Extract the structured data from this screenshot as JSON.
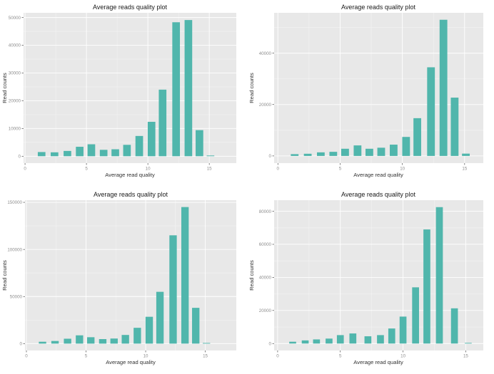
{
  "styles": {
    "bar_color": "#50b6ac",
    "panel_bg": "#e8e8e8",
    "grid_major": "#ffffff",
    "grid_minor": "#f3f3f3",
    "tick_mark_color": "#333333",
    "tick_text_color": "#8e8e8e"
  },
  "chart_data": [
    {
      "type": "bar",
      "title": "Average reads quality plot",
      "xlabel": "Average read quality",
      "ylabel": "Read counts",
      "x": [
        1.35,
        2.4,
        3.45,
        4.45,
        5.4,
        6.4,
        7.35,
        8.3,
        9.3,
        10.3,
        11.2,
        12.3,
        13.3,
        14.2,
        15.1
      ],
      "values": [
        1500,
        1400,
        1900,
        3400,
        4300,
        2300,
        2500,
        4100,
        7300,
        12400,
        24000,
        48300,
        49100,
        9400,
        250
      ],
      "bar_width": 0.62,
      "xlim": [
        -0.12,
        17.2
      ],
      "ylim": [
        -2500,
        51700
      ],
      "x_ticks": [
        0,
        5,
        10,
        15
      ],
      "x_tick_labels": [
        "0",
        "5",
        "10",
        "15"
      ],
      "x_minor": [
        2.5,
        7.5,
        12.5
      ],
      "y_ticks": [
        0,
        10000,
        20000,
        30000,
        40000,
        50000
      ],
      "y_tick_labels": [
        "0",
        "10000",
        "20000",
        "30000",
        "40000",
        "50000"
      ],
      "y_minor": [
        5000,
        15000,
        25000,
        35000,
        45000
      ],
      "grid": true,
      "legend": "none"
    },
    {
      "type": "bar",
      "title": "Average reads quality plot",
      "xlabel": "Average read quality",
      "ylabel": "Read counts",
      "x": [
        1.35,
        2.4,
        3.45,
        4.45,
        5.4,
        6.4,
        7.35,
        8.3,
        9.3,
        10.3,
        11.2,
        12.3,
        13.3,
        14.2,
        15.1
      ],
      "values": [
        700,
        850,
        1400,
        1600,
        2800,
        4100,
        2800,
        3200,
        4400,
        7400,
        14700,
        34500,
        53000,
        22700,
        900
      ],
      "bar_width": 0.62,
      "xlim": [
        -0.3,
        16.5
      ],
      "ylim": [
        -2800,
        55700
      ],
      "x_ticks": [
        0,
        5,
        10,
        15
      ],
      "x_tick_labels": [
        "0",
        "5",
        "10",
        "15"
      ],
      "x_minor": [
        2.5,
        7.5,
        12.5
      ],
      "y_ticks": [
        0,
        20000,
        40000
      ],
      "y_tick_labels": [
        "0",
        "20000",
        "40000"
      ],
      "y_minor": [
        10000,
        30000,
        50000
      ],
      "grid": true,
      "legend": "none"
    },
    {
      "type": "bar",
      "title": "Average reads quality plot",
      "xlabel": "Average read quality",
      "ylabel": "Read counts",
      "x": [
        1.35,
        2.4,
        3.45,
        4.45,
        5.4,
        6.4,
        7.35,
        8.3,
        9.3,
        10.3,
        11.2,
        12.3,
        13.3,
        14.2,
        15.1
      ],
      "values": [
        2000,
        2800,
        5200,
        8800,
        6800,
        4800,
        5400,
        9200,
        16800,
        28500,
        55000,
        115000,
        145000,
        38000,
        700
      ],
      "bar_width": 0.62,
      "xlim": [
        -0.12,
        17.6
      ],
      "ylim": [
        -7300,
        152300
      ],
      "x_ticks": [
        0,
        5,
        10,
        15
      ],
      "x_tick_labels": [
        "0",
        "5",
        "10",
        "15"
      ],
      "x_minor": [
        2.5,
        7.5,
        12.5
      ],
      "y_ticks": [
        0,
        50000,
        100000,
        150000
      ],
      "y_tick_labels": [
        "0",
        "50000",
        "100000",
        "150000"
      ],
      "y_minor": [
        25000,
        75000,
        125000
      ],
      "grid": true,
      "legend": "none"
    },
    {
      "type": "bar",
      "title": "Average reads quality plot",
      "xlabel": "Average read quality",
      "ylabel": "Read counts",
      "x": [
        1.2,
        2.2,
        3.1,
        4.1,
        5.0,
        6.0,
        7.2,
        8.2,
        9.1,
        10.0,
        11.0,
        11.9,
        12.9,
        14.1,
        15.2
      ],
      "values": [
        1100,
        1900,
        2500,
        3000,
        5100,
        6100,
        4400,
        5100,
        9100,
        16300,
        34000,
        69000,
        82500,
        21300,
        400
      ],
      "bar_width": 0.55,
      "xlim": [
        -0.28,
        16.4
      ],
      "ylim": [
        -4200,
        86700
      ],
      "x_ticks": [
        0,
        5,
        10,
        15
      ],
      "x_tick_labels": [
        "0",
        "5",
        "10",
        "15"
      ],
      "x_minor": [
        2.5,
        7.5,
        12.5
      ],
      "y_ticks": [
        0,
        20000,
        40000,
        60000,
        80000
      ],
      "y_tick_labels": [
        "0",
        "20000",
        "40000",
        "60000",
        "80000"
      ],
      "y_minor": [
        10000,
        30000,
        50000,
        70000
      ],
      "grid": true,
      "legend": "none"
    }
  ]
}
